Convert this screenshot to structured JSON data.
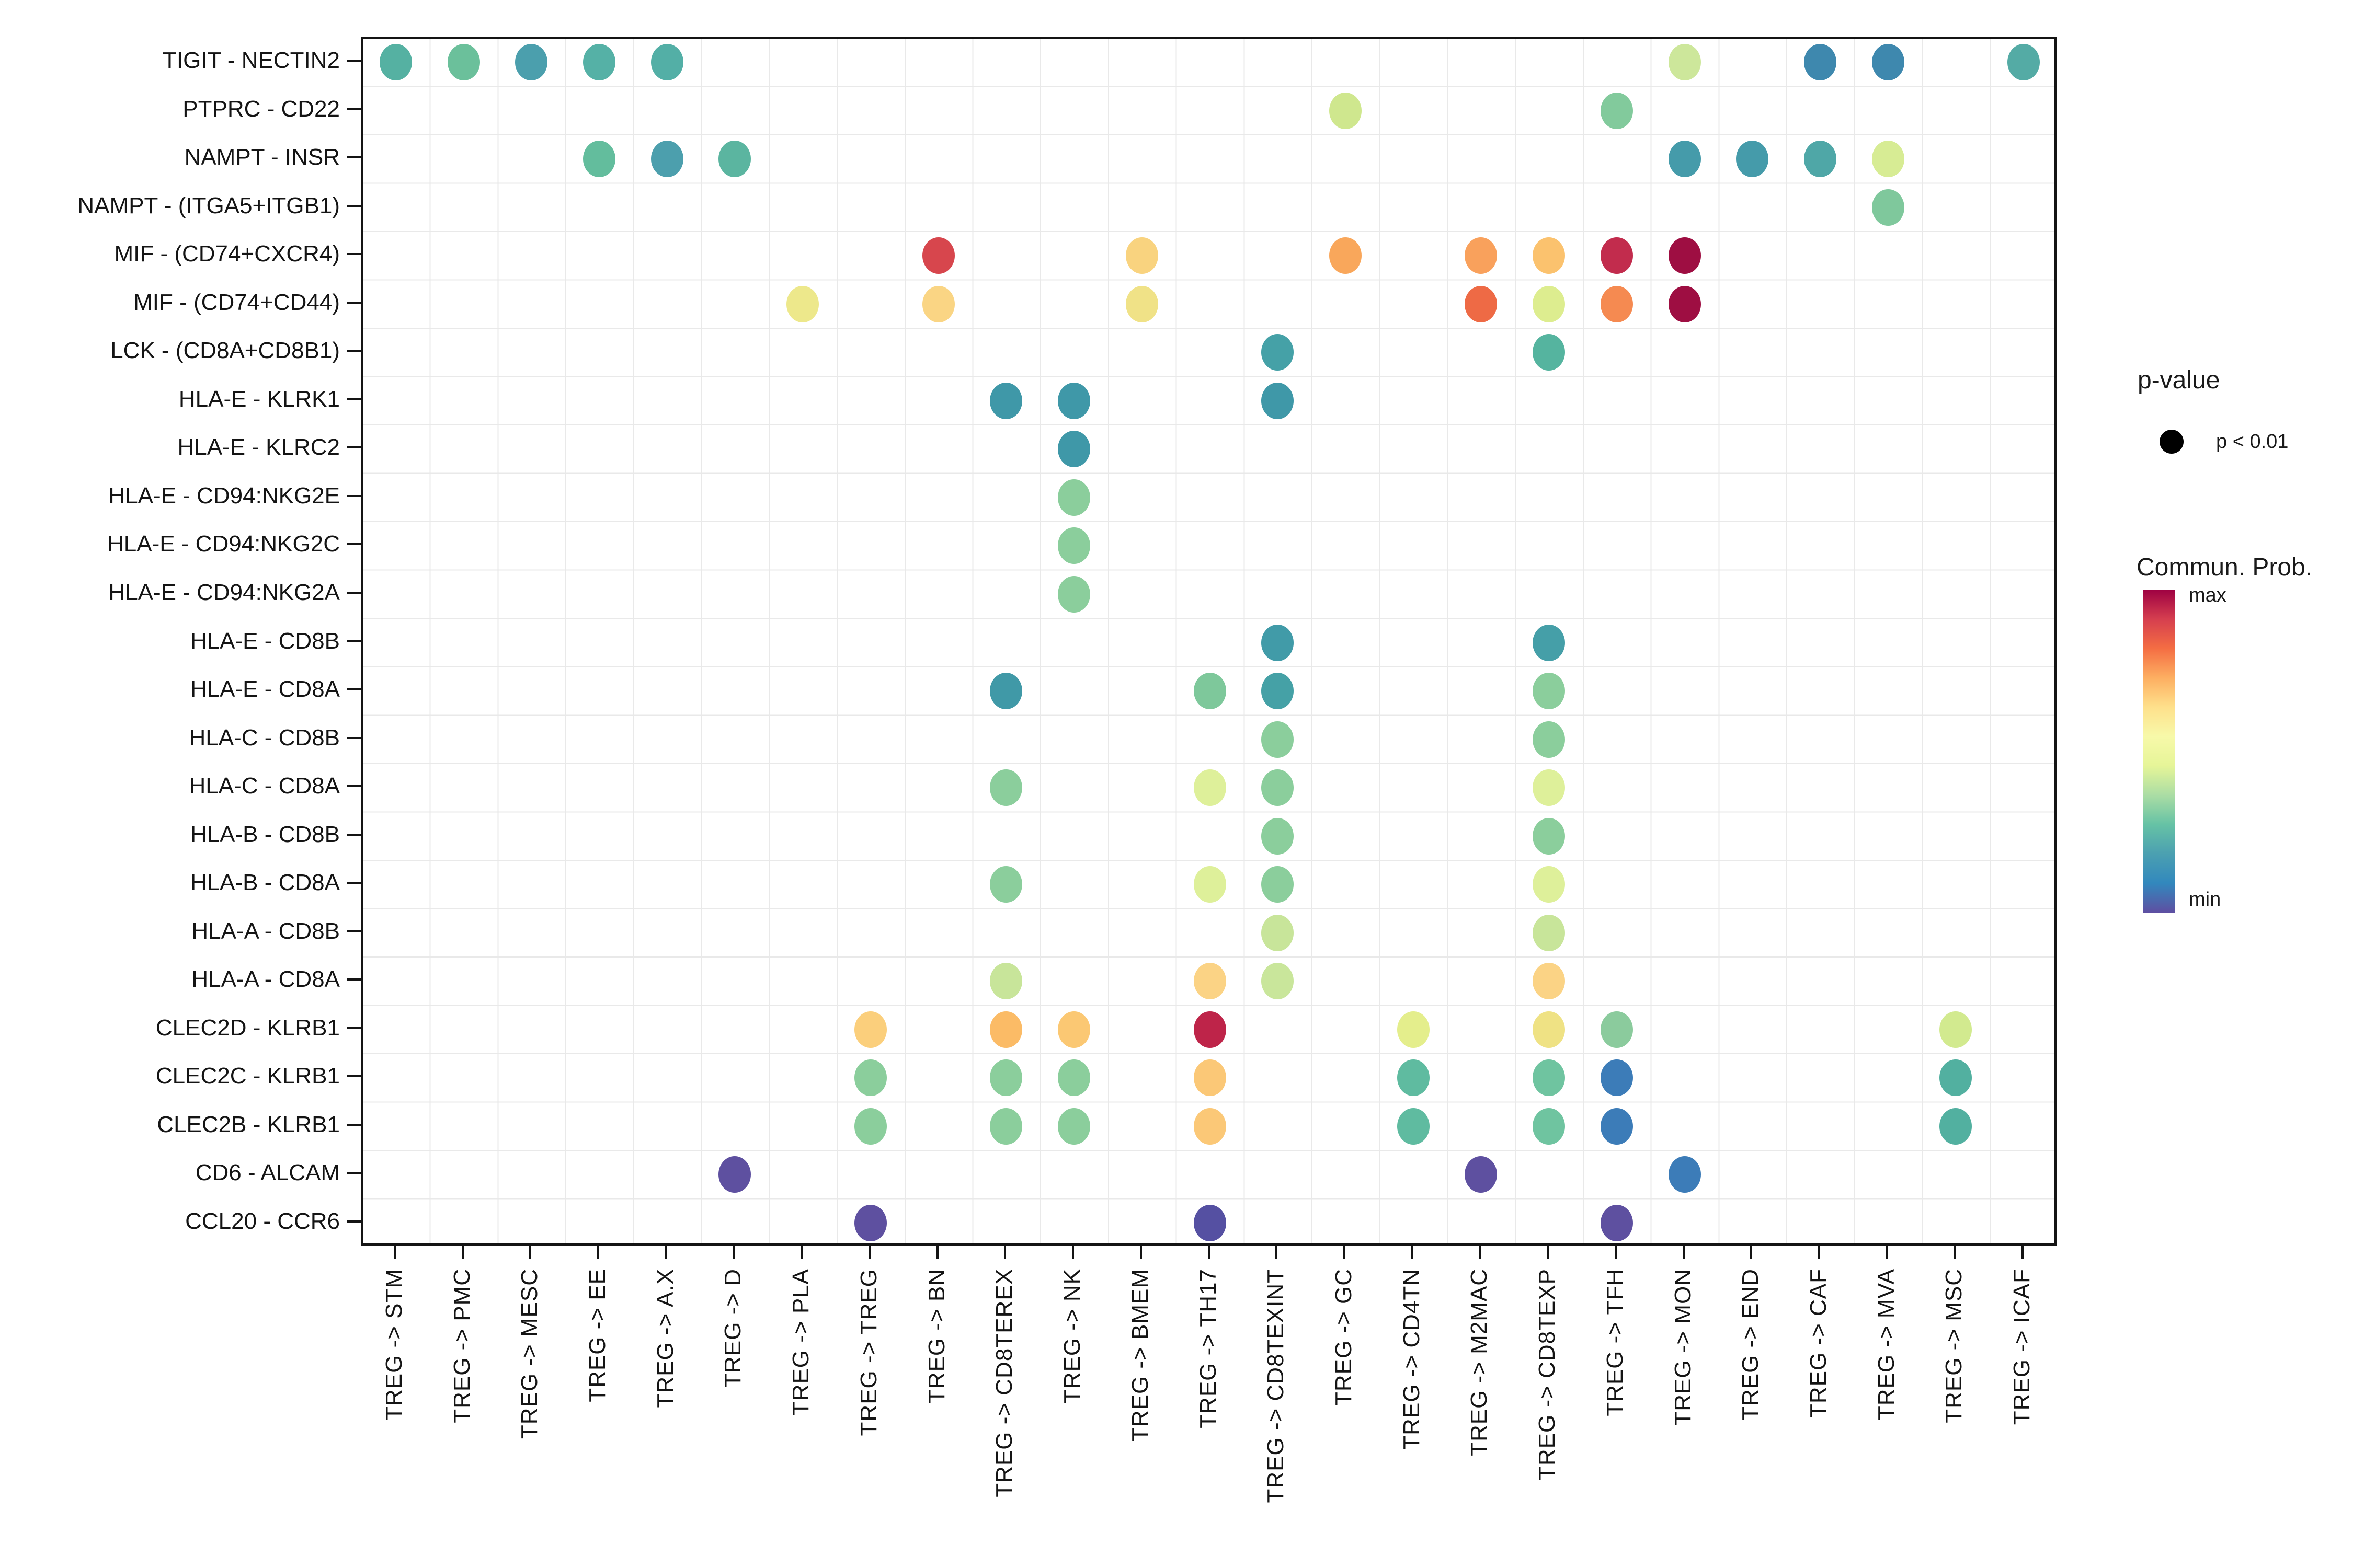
{
  "chart_data": {
    "type": "scatter",
    "title": "",
    "xlabel": "",
    "ylabel": "",
    "grid": "boxed-light-gray",
    "x_categories": [
      "TREG -> STM",
      "TREG -> PMC",
      "TREG -> MESC",
      "TREG -> EE",
      "TREG -> A.X",
      "TREG -> D",
      "TREG -> PLA",
      "TREG -> TREG",
      "TREG -> BN",
      "TREG -> CD8TEREX",
      "TREG -> NK",
      "TREG -> BMEM",
      "TREG -> TH17",
      "TREG -> CD8TEXINT",
      "TREG -> GC",
      "TREG -> CD4TN",
      "TREG -> M2MAC",
      "TREG -> CD8TEXP",
      "TREG -> TFH",
      "TREG -> MON",
      "TREG -> END",
      "TREG -> CAF",
      "TREG -> MVA",
      "TREG -> MSC",
      "TREG -> ICAF"
    ],
    "y_categories": [
      "TIGIT - NECTIN2",
      "PTPRC - CD22",
      "NAMPT - INSR",
      "NAMPT - (ITGA5+ITGB1)",
      "MIF - (CD74+CXCR4)",
      "MIF - (CD74+CD44)",
      "LCK - (CD8A+CD8B1)",
      "HLA-E - KLRK1",
      "HLA-E - KLRC2",
      "HLA-E - CD94:NKG2E",
      "HLA-E - CD94:NKG2C",
      "HLA-E - CD94:NKG2A",
      "HLA-E - CD8B",
      "HLA-E - CD8A",
      "HLA-C - CD8B",
      "HLA-C - CD8A",
      "HLA-B - CD8B",
      "HLA-B - CD8A",
      "HLA-A - CD8B",
      "HLA-A - CD8A",
      "CLEC2D - KLRB1",
      "CLEC2C - KLRB1",
      "CLEC2B - KLRB1",
      "CD6 - ALCAM",
      "CCL20 - CCR6"
    ],
    "dots_note": "r=row index into y_categories (0-based, top first), c=col index into x_categories (0-based), color sampled from image (Spectral scale of Commun. Prob.)",
    "dots": [
      {
        "r": 0,
        "c": 0,
        "color": "#55B1A2"
      },
      {
        "r": 0,
        "c": 1,
        "color": "#6BC09B"
      },
      {
        "r": 0,
        "c": 2,
        "color": "#4B9FAD"
      },
      {
        "r": 0,
        "c": 3,
        "color": "#55B1A6"
      },
      {
        "r": 0,
        "c": 4,
        "color": "#53AFA6"
      },
      {
        "r": 0,
        "c": 19,
        "color": "#CDE79B"
      },
      {
        "r": 0,
        "c": 21,
        "color": "#3E88AE"
      },
      {
        "r": 0,
        "c": 22,
        "color": "#3E88AE"
      },
      {
        "r": 0,
        "c": 24,
        "color": "#54ABA5"
      },
      {
        "r": 1,
        "c": 14,
        "color": "#CFE78E"
      },
      {
        "r": 1,
        "c": 18,
        "color": "#82CA9C"
      },
      {
        "r": 2,
        "c": 3,
        "color": "#63BD9D"
      },
      {
        "r": 2,
        "c": 4,
        "color": "#4C9FAD"
      },
      {
        "r": 2,
        "c": 5,
        "color": "#5BB5A0"
      },
      {
        "r": 2,
        "c": 19,
        "color": "#459BAA"
      },
      {
        "r": 2,
        "c": 20,
        "color": "#459BAA"
      },
      {
        "r": 2,
        "c": 21,
        "color": "#4FA7A7"
      },
      {
        "r": 2,
        "c": 22,
        "color": "#D7EC94"
      },
      {
        "r": 3,
        "c": 22,
        "color": "#7FC89C"
      },
      {
        "r": 4,
        "c": 8,
        "color": "#D7464D"
      },
      {
        "r": 4,
        "c": 11,
        "color": "#F9D37F"
      },
      {
        "r": 4,
        "c": 14,
        "color": "#F9A75B"
      },
      {
        "r": 4,
        "c": 16,
        "color": "#F9A15C"
      },
      {
        "r": 4,
        "c": 17,
        "color": "#FBC26E"
      },
      {
        "r": 4,
        "c": 18,
        "color": "#C22C4D"
      },
      {
        "r": 4,
        "c": 19,
        "color": "#9E0E42"
      },
      {
        "r": 5,
        "c": 6,
        "color": "#EDE88B"
      },
      {
        "r": 5,
        "c": 8,
        "color": "#FAD584"
      },
      {
        "r": 5,
        "c": 11,
        "color": "#F0E287"
      },
      {
        "r": 5,
        "c": 16,
        "color": "#EE6A45"
      },
      {
        "r": 5,
        "c": 17,
        "color": "#DDED8F"
      },
      {
        "r": 5,
        "c": 18,
        "color": "#F58A51"
      },
      {
        "r": 5,
        "c": 19,
        "color": "#9E0E42"
      },
      {
        "r": 6,
        "c": 13,
        "color": "#45A1A7"
      },
      {
        "r": 6,
        "c": 17,
        "color": "#55B49F"
      },
      {
        "r": 7,
        "c": 9,
        "color": "#3F98A8"
      },
      {
        "r": 7,
        "c": 10,
        "color": "#3F98A8"
      },
      {
        "r": 7,
        "c": 13,
        "color": "#3F98A8"
      },
      {
        "r": 8,
        "c": 10,
        "color": "#3F98A8"
      },
      {
        "r": 9,
        "c": 10,
        "color": "#8BCE9C"
      },
      {
        "r": 10,
        "c": 10,
        "color": "#8BCE9C"
      },
      {
        "r": 11,
        "c": 10,
        "color": "#8BCE9C"
      },
      {
        "r": 12,
        "c": 13,
        "color": "#419BA8"
      },
      {
        "r": 12,
        "c": 17,
        "color": "#459FA8"
      },
      {
        "r": 13,
        "c": 9,
        "color": "#4099A7"
      },
      {
        "r": 13,
        "c": 12,
        "color": "#7EC89B"
      },
      {
        "r": 13,
        "c": 13,
        "color": "#45A1A6"
      },
      {
        "r": 13,
        "c": 17,
        "color": "#8BCE9C"
      },
      {
        "r": 14,
        "c": 13,
        "color": "#8BCE9C"
      },
      {
        "r": 14,
        "c": 17,
        "color": "#8BCE9C"
      },
      {
        "r": 15,
        "c": 9,
        "color": "#8BCE9C"
      },
      {
        "r": 15,
        "c": 12,
        "color": "#DEF09A"
      },
      {
        "r": 15,
        "c": 13,
        "color": "#8BCE9C"
      },
      {
        "r": 15,
        "c": 17,
        "color": "#DEF09A"
      },
      {
        "r": 16,
        "c": 13,
        "color": "#8BCE9C"
      },
      {
        "r": 16,
        "c": 17,
        "color": "#8BCE9C"
      },
      {
        "r": 17,
        "c": 9,
        "color": "#8BCE9C"
      },
      {
        "r": 17,
        "c": 12,
        "color": "#DEF09A"
      },
      {
        "r": 17,
        "c": 13,
        "color": "#8BCE9C"
      },
      {
        "r": 17,
        "c": 17,
        "color": "#DEF09A"
      },
      {
        "r": 18,
        "c": 13,
        "color": "#C8E59A"
      },
      {
        "r": 18,
        "c": 17,
        "color": "#C8E59A"
      },
      {
        "r": 19,
        "c": 9,
        "color": "#C8E59A"
      },
      {
        "r": 19,
        "c": 12,
        "color": "#FBD385"
      },
      {
        "r": 19,
        "c": 13,
        "color": "#C9E69B"
      },
      {
        "r": 19,
        "c": 17,
        "color": "#FBD385"
      },
      {
        "r": 20,
        "c": 7,
        "color": "#FBCF7C"
      },
      {
        "r": 20,
        "c": 9,
        "color": "#FBBB66"
      },
      {
        "r": 20,
        "c": 10,
        "color": "#FBC873"
      },
      {
        "r": 20,
        "c": 12,
        "color": "#BE2449"
      },
      {
        "r": 20,
        "c": 15,
        "color": "#E4EE8C"
      },
      {
        "r": 20,
        "c": 17,
        "color": "#EFE284"
      },
      {
        "r": 20,
        "c": 18,
        "color": "#8BCB9D"
      },
      {
        "r": 20,
        "c": 23,
        "color": "#D2EA8F"
      },
      {
        "r": 21,
        "c": 7,
        "color": "#8BCE9C"
      },
      {
        "r": 21,
        "c": 9,
        "color": "#8BCE9C"
      },
      {
        "r": 21,
        "c": 10,
        "color": "#8BCE9C"
      },
      {
        "r": 21,
        "c": 12,
        "color": "#FBC877"
      },
      {
        "r": 21,
        "c": 15,
        "color": "#5FBBA0"
      },
      {
        "r": 21,
        "c": 17,
        "color": "#6FC4A0"
      },
      {
        "r": 21,
        "c": 18,
        "color": "#3C7CB8"
      },
      {
        "r": 21,
        "c": 23,
        "color": "#52B0A0"
      },
      {
        "r": 22,
        "c": 7,
        "color": "#8BCE9C"
      },
      {
        "r": 22,
        "c": 9,
        "color": "#8BCE9C"
      },
      {
        "r": 22,
        "c": 10,
        "color": "#8BCE9C"
      },
      {
        "r": 22,
        "c": 12,
        "color": "#FBC877"
      },
      {
        "r": 22,
        "c": 15,
        "color": "#5FBBA0"
      },
      {
        "r": 22,
        "c": 17,
        "color": "#6FC4A0"
      },
      {
        "r": 22,
        "c": 18,
        "color": "#3C7CB8"
      },
      {
        "r": 22,
        "c": 23,
        "color": "#52B0A0"
      },
      {
        "r": 23,
        "c": 5,
        "color": "#5E50A0"
      },
      {
        "r": 23,
        "c": 16,
        "color": "#5E50A0"
      },
      {
        "r": 23,
        "c": 19,
        "color": "#3C7CB8"
      },
      {
        "r": 24,
        "c": 7,
        "color": "#5E50A0"
      },
      {
        "r": 24,
        "c": 12,
        "color": "#5550A2"
      },
      {
        "r": 24,
        "c": 18,
        "color": "#5E50A0"
      }
    ],
    "legend_position": "right"
  },
  "legend": {
    "pvalue_title": "p-value",
    "pvalue_item": "p < 0.01",
    "pvalue_dot_color": "#000000",
    "colorbar_title": "Commun. Prob.",
    "colorbar_max_label": "max",
    "colorbar_min_label": "min",
    "colorbar_stops_top_to_bottom": [
      "#9E0142",
      "#D53E4F",
      "#F46D43",
      "#FDAE61",
      "#FEE08B",
      "#F7F9A9",
      "#E6F598",
      "#ABDDA4",
      "#66C2A5",
      "#4BA0B1",
      "#3288BD",
      "#5E4FA2"
    ]
  },
  "style_colors": {
    "panel_border": "#141414",
    "gridline": "#E9E9E9",
    "background": "#FFFFFF",
    "text": "#141414"
  }
}
